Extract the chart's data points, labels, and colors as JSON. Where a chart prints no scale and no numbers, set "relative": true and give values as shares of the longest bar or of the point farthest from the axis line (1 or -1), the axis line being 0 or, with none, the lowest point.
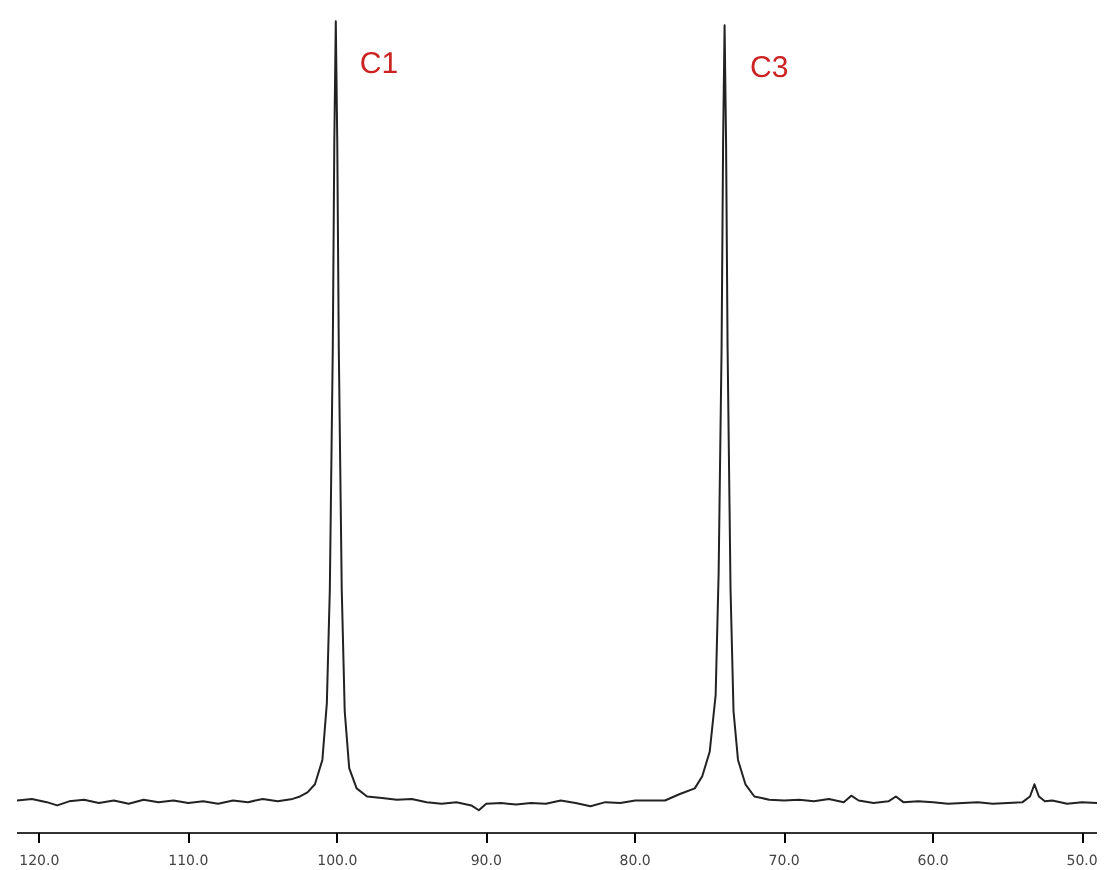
{
  "chart_data": {
    "type": "line",
    "relative": true,
    "x": [
      121.5,
      120.5,
      119.5,
      118.8,
      118.0,
      117.0,
      116.0,
      115.0,
      114.0,
      113.0,
      112.0,
      111.0,
      110.0,
      109.0,
      108.0,
      107.0,
      106.0,
      105.0,
      104.0,
      103.0,
      102.5,
      102.0,
      101.5,
      101.0,
      100.7,
      100.5,
      100.3,
      100.2,
      100.1,
      100.0,
      99.9,
      99.7,
      99.5,
      99.2,
      98.7,
      98.0,
      97.0,
      96.0,
      95.0,
      94.0,
      93.0,
      92.0,
      91.0,
      90.5,
      90.0,
      89.0,
      88.0,
      87.0,
      86.0,
      85.0,
      84.0,
      83.0,
      82.0,
      81.0,
      80.0,
      79.0,
      78.0,
      77.0,
      76.0,
      75.5,
      75.0,
      74.6,
      74.4,
      74.2,
      74.1,
      74.0,
      73.9,
      73.8,
      73.6,
      73.4,
      73.1,
      72.6,
      72.0,
      71.0,
      70.0,
      69.0,
      68.0,
      67.0,
      66.0,
      65.5,
      65.0,
      64.0,
      63.0,
      62.5,
      62.0,
      61.0,
      60.0,
      59.0,
      58.0,
      57.0,
      56.0,
      55.0,
      54.0,
      53.5,
      53.2,
      52.9,
      52.5,
      52.0,
      51.0,
      50.0,
      49.0
    ],
    "series": [
      {
        "color": "#222222",
        "values": [
          0.04,
          0.042,
          0.038,
          0.034,
          0.039,
          0.041,
          0.037,
          0.04,
          0.036,
          0.041,
          0.038,
          0.04,
          0.037,
          0.039,
          0.036,
          0.04,
          0.038,
          0.042,
          0.039,
          0.042,
          0.045,
          0.05,
          0.06,
          0.09,
          0.16,
          0.3,
          0.6,
          0.85,
          1.0,
          0.85,
          0.6,
          0.3,
          0.15,
          0.08,
          0.055,
          0.045,
          0.043,
          0.041,
          0.042,
          0.038,
          0.036,
          0.038,
          0.034,
          0.028,
          0.036,
          0.037,
          0.035,
          0.037,
          0.036,
          0.04,
          0.037,
          0.033,
          0.038,
          0.037,
          0.04,
          0.04,
          0.04,
          0.048,
          0.055,
          0.07,
          0.1,
          0.17,
          0.32,
          0.6,
          0.85,
          0.995,
          0.85,
          0.6,
          0.3,
          0.15,
          0.09,
          0.06,
          0.045,
          0.041,
          0.04,
          0.041,
          0.039,
          0.042,
          0.038,
          0.046,
          0.04,
          0.037,
          0.039,
          0.045,
          0.038,
          0.039,
          0.038,
          0.036,
          0.037,
          0.038,
          0.036,
          0.037,
          0.038,
          0.045,
          0.06,
          0.045,
          0.039,
          0.04,
          0.036,
          0.038,
          0.037
        ]
      }
    ],
    "annotations": [
      {
        "text": "C1",
        "x": 100.1,
        "y": 1.0
      },
      {
        "text": "C3",
        "x": 73.9,
        "y": 0.995
      }
    ],
    "xlim": [
      121.5,
      49
    ],
    "xticks": [
      {
        "value": 120,
        "label": "120.0"
      },
      {
        "value": 110,
        "label": "110.0"
      },
      {
        "value": 100,
        "label": "100.0"
      },
      {
        "value": 90,
        "label": "90.0"
      },
      {
        "value": 80,
        "label": "80.0"
      },
      {
        "value": 70,
        "label": "70.0"
      },
      {
        "value": 60,
        "label": "60.0"
      },
      {
        "value": 50,
        "label": "50.0"
      }
    ],
    "grid": false,
    "marker": "none",
    "line_style": "solid"
  }
}
